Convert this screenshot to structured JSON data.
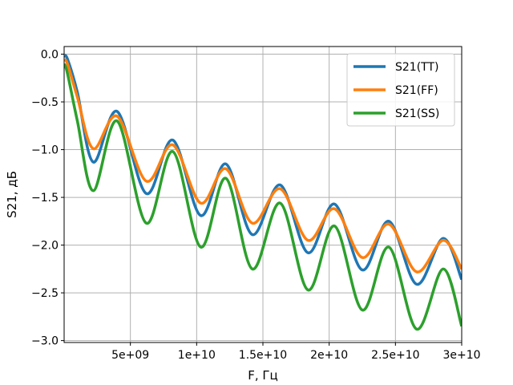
{
  "chart_data": {
    "type": "line",
    "title": "",
    "xlabel": "F, Гц",
    "ylabel": "S21, дБ",
    "xlim": [
      0,
      30000000000
    ],
    "ylim": [
      -3.02,
      0.08
    ],
    "grid": true,
    "legend_position": "top-right",
    "x_ticks": [
      {
        "value": 5000000000,
        "label": "5e+09"
      },
      {
        "value": 10000000000,
        "label": "1e+10"
      },
      {
        "value": 15000000000,
        "label": "1.5e+10"
      },
      {
        "value": 20000000000,
        "label": "2e+10"
      },
      {
        "value": 25000000000,
        "label": "2.5e+10"
      },
      {
        "value": 30000000000,
        "label": "3e+10"
      }
    ],
    "y_ticks": [
      {
        "value": 0.0,
        "label": "0.0"
      },
      {
        "value": -0.5,
        "label": "−0.5"
      },
      {
        "value": -1.0,
        "label": "−1.0"
      },
      {
        "value": -1.5,
        "label": "−1.5"
      },
      {
        "value": -2.0,
        "label": "−2.0"
      },
      {
        "value": -2.5,
        "label": "−2.5"
      },
      {
        "value": -3.0,
        "label": "−3.0"
      }
    ],
    "series": [
      {
        "name": "S21(TT)",
        "color": "#1f77b4",
        "x": [
          0,
          250000000,
          1000000000,
          2200000000,
          4000000000,
          6200000000,
          8200000000,
          10300000000,
          12200000000,
          14200000000,
          16300000000,
          18400000000,
          20400000000,
          22500000000,
          24500000000,
          26600000000,
          28600000000,
          30000000000
        ],
        "y": [
          -0.02,
          -0.05,
          -0.4,
          -1.13,
          -0.6,
          -1.46,
          -0.9,
          -1.69,
          -1.15,
          -1.89,
          -1.37,
          -2.08,
          -1.57,
          -2.26,
          -1.75,
          -2.41,
          -1.93,
          -2.36
        ]
      },
      {
        "name": "S21(FF)",
        "color": "#ff7f0e",
        "x": [
          0,
          250000000,
          1000000000,
          2200000000,
          4000000000,
          6200000000,
          8200000000,
          10300000000,
          12200000000,
          14200000000,
          16300000000,
          18400000000,
          20400000000,
          22500000000,
          24500000000,
          26600000000,
          28600000000,
          30000000000
        ],
        "y": [
          -0.06,
          -0.1,
          -0.45,
          -0.99,
          -0.65,
          -1.33,
          -0.95,
          -1.56,
          -1.2,
          -1.77,
          -1.41,
          -1.95,
          -1.62,
          -2.13,
          -1.78,
          -2.28,
          -1.95,
          -2.25
        ]
      },
      {
        "name": "S21(SS)",
        "color": "#2ca02c",
        "x": [
          0,
          250000000,
          1000000000,
          2200000000,
          4000000000,
          6200000000,
          8200000000,
          10300000000,
          12200000000,
          14200000000,
          16300000000,
          18400000000,
          20400000000,
          22500000000,
          24500000000,
          26600000000,
          28600000000,
          30000000000
        ],
        "y": [
          -0.1,
          -0.2,
          -0.7,
          -1.43,
          -0.7,
          -1.77,
          -1.02,
          -2.02,
          -1.3,
          -2.25,
          -1.56,
          -2.47,
          -1.8,
          -2.68,
          -2.02,
          -2.88,
          -2.25,
          -2.85
        ]
      }
    ]
  }
}
